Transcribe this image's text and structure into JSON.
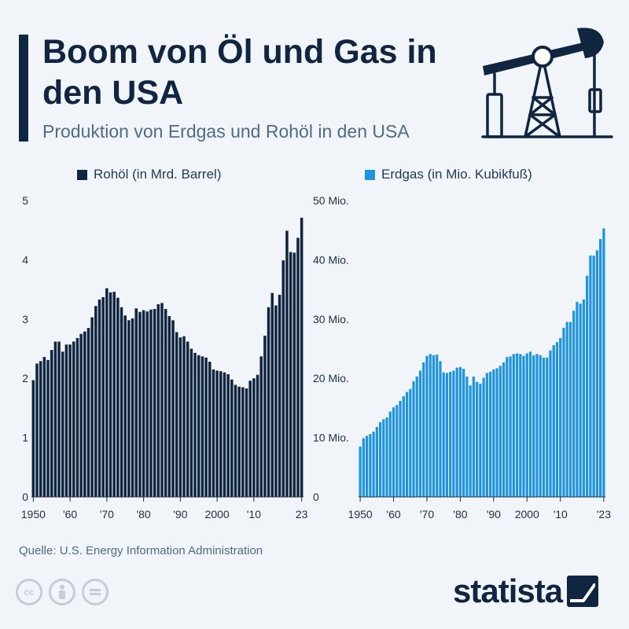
{
  "header": {
    "title": "Boom von Öl und Gas in den USA",
    "subtitle": "Produktion von Erdgas und Rohöl in den USA"
  },
  "colors": {
    "oil": "#0f2540",
    "gas": "#1e93e0",
    "text": "#0f2540",
    "muted": "#4f6b86"
  },
  "chart_data": [
    {
      "type": "bar",
      "title": "Rohöl (in Mrd. Barrel)",
      "legend": "Rohöl (in Mrd. Barrel)",
      "xlabel": "",
      "ylabel": "",
      "ylim": [
        0,
        5
      ],
      "yticks": [
        0,
        1,
        2,
        3,
        4,
        5
      ],
      "ytick_labels": [
        "0",
        "1",
        "2",
        "3",
        "4",
        "5"
      ],
      "x_tick_labels": [
        {
          "year": 1950,
          "label": "1950"
        },
        {
          "year": 1960,
          "label": "'60"
        },
        {
          "year": 1970,
          "label": "'70"
        },
        {
          "year": 1980,
          "label": "'80"
        },
        {
          "year": 1990,
          "label": "'90"
        },
        {
          "year": 2000,
          "label": "2000"
        },
        {
          "year": 2010,
          "label": "'10"
        },
        {
          "year": 2023,
          "label": "23"
        }
      ],
      "categories": [
        1950,
        1951,
        1952,
        1953,
        1954,
        1955,
        1956,
        1957,
        1958,
        1959,
        1960,
        1961,
        1962,
        1963,
        1964,
        1965,
        1966,
        1967,
        1968,
        1969,
        1970,
        1971,
        1972,
        1973,
        1974,
        1975,
        1976,
        1977,
        1978,
        1979,
        1980,
        1981,
        1982,
        1983,
        1984,
        1985,
        1986,
        1987,
        1988,
        1989,
        1990,
        1991,
        1992,
        1993,
        1994,
        1995,
        1996,
        1997,
        1998,
        1999,
        2000,
        2001,
        2002,
        2003,
        2004,
        2005,
        2006,
        2007,
        2008,
        2009,
        2010,
        2011,
        2012,
        2013,
        2014,
        2015,
        2016,
        2017,
        2018,
        2019,
        2020,
        2021,
        2022,
        2023
      ],
      "values": [
        1.97,
        2.25,
        2.29,
        2.36,
        2.31,
        2.48,
        2.62,
        2.62,
        2.45,
        2.57,
        2.57,
        2.62,
        2.68,
        2.75,
        2.79,
        2.85,
        3.03,
        3.22,
        3.33,
        3.37,
        3.52,
        3.45,
        3.46,
        3.36,
        3.2,
        3.06,
        2.98,
        3.01,
        3.18,
        3.12,
        3.15,
        3.13,
        3.16,
        3.17,
        3.25,
        3.27,
        3.17,
        3.05,
        2.98,
        2.78,
        2.69,
        2.71,
        2.62,
        2.5,
        2.43,
        2.39,
        2.37,
        2.35,
        2.28,
        2.15,
        2.13,
        2.12,
        2.1,
        2.07,
        1.98,
        1.89,
        1.86,
        1.85,
        1.83,
        1.96,
        2.0,
        2.06,
        2.37,
        2.72,
        3.2,
        3.44,
        3.23,
        3.41,
        3.99,
        4.49,
        4.13,
        4.12,
        4.37,
        4.71
      ]
    },
    {
      "type": "bar",
      "title": "Erdgas (in Mio. Kubikfuß)",
      "legend": "Erdgas (in Mio. Kubikfuß)",
      "xlabel": "",
      "ylabel": "",
      "ylim": [
        0,
        50
      ],
      "yticks": [
        0,
        10,
        20,
        30,
        40,
        50
      ],
      "ytick_labels": [
        "0",
        "10 Mio.",
        "20 Mio.",
        "30 Mio.",
        "40 Mio.",
        "50 Mio."
      ],
      "x_tick_labels": [
        {
          "year": 1950,
          "label": "1950"
        },
        {
          "year": 1960,
          "label": "'60"
        },
        {
          "year": 1970,
          "label": "'70"
        },
        {
          "year": 1980,
          "label": "'80"
        },
        {
          "year": 1990,
          "label": "'90"
        },
        {
          "year": 2000,
          "label": "2000"
        },
        {
          "year": 2010,
          "label": "'10"
        },
        {
          "year": 2023,
          "label": "'23"
        }
      ],
      "categories": [
        1950,
        1951,
        1952,
        1953,
        1954,
        1955,
        1956,
        1957,
        1958,
        1959,
        1960,
        1961,
        1962,
        1963,
        1964,
        1965,
        1966,
        1967,
        1968,
        1969,
        1970,
        1971,
        1972,
        1973,
        1974,
        1975,
        1976,
        1977,
        1978,
        1979,
        1980,
        1981,
        1982,
        1983,
        1984,
        1985,
        1986,
        1987,
        1988,
        1989,
        1990,
        1991,
        1992,
        1993,
        1994,
        1995,
        1996,
        1997,
        1998,
        1999,
        2000,
        2001,
        2002,
        2003,
        2004,
        2005,
        2006,
        2007,
        2008,
        2009,
        2010,
        2011,
        2012,
        2013,
        2014,
        2015,
        2016,
        2017,
        2018,
        2019,
        2020,
        2021,
        2022,
        2023
      ],
      "values": [
        8.5,
        9.9,
        10.3,
        10.6,
        11.0,
        11.8,
        12.6,
        13.1,
        13.4,
        14.4,
        15.1,
        15.5,
        16.2,
        17.0,
        17.7,
        18.2,
        19.5,
        20.3,
        21.3,
        22.7,
        23.8,
        24.1,
        23.9,
        24.0,
        22.9,
        21.0,
        20.9,
        21.1,
        21.3,
        21.8,
        21.9,
        21.6,
        20.3,
        18.8,
        20.3,
        19.4,
        19.1,
        20.1,
        20.9,
        21.1,
        21.5,
        21.7,
        22.1,
        22.7,
        23.6,
        23.7,
        24.1,
        24.2,
        24.1,
        23.8,
        24.2,
        24.5,
        23.9,
        24.1,
        23.9,
        23.5,
        23.5,
        24.7,
        25.6,
        26.1,
        26.8,
        28.5,
        29.5,
        29.5,
        31.4,
        32.9,
        32.6,
        33.3,
        37.3,
        40.7,
        40.7,
        41.6,
        43.5,
        45.3
      ]
    }
  ],
  "source": "Quelle: U.S. Energy Information Administration",
  "brand": {
    "name": "statista"
  },
  "license_icons": [
    "cc-icon",
    "attribution-icon",
    "no-derivatives-icon"
  ]
}
